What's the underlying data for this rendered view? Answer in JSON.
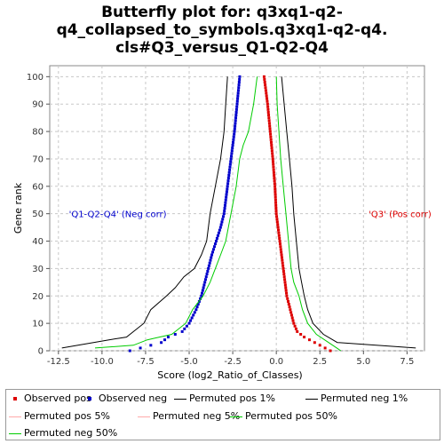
{
  "title_lines": [
    "Butterfly plot for: q3xq1-q2-",
    "q4_collapsed_to_symbols.q3xq1-q2-q4.",
    "cls#Q3_versus_Q1-Q2-Q4"
  ],
  "chart_data": {
    "type": "line",
    "xlabel": "Score (log2_Ratio_of_Classes)",
    "ylabel": "Gene rank",
    "xlim": [
      -13,
      8.5
    ],
    "ylim": [
      0,
      104
    ],
    "xticks": [
      -12.5,
      -10.0,
      -7.5,
      -5.0,
      -2.5,
      0.0,
      2.5,
      5.0,
      7.5
    ],
    "xtick_labels": [
      "-12.5",
      "-10.0",
      "-7.5",
      "-5.0",
      "-2.5",
      "0.0",
      "2.5",
      "5.0",
      "7.5"
    ],
    "yticks": [
      0,
      10,
      20,
      30,
      40,
      50,
      60,
      70,
      80,
      90,
      100
    ],
    "grid": true,
    "annotations": [
      {
        "text": "'Q1-Q2-Q4' (Neg corr)",
        "x": -11.9,
        "y": 50,
        "color": "#0000cc"
      },
      {
        "text": "'Q3' (Pos corr)",
        "x": 5.3,
        "y": 50,
        "color": "#dd0000"
      }
    ],
    "series": [
      {
        "name": "Observed pos",
        "style": "points",
        "color": "#dd0000",
        "x": [
          -0.7,
          -0.5,
          -0.35,
          -0.2,
          -0.08,
          0.0,
          0.1,
          0.2,
          0.3,
          0.4,
          0.5,
          0.6,
          0.8,
          1.0,
          1.2,
          1.6,
          2.2,
          3.1
        ],
        "y": [
          100,
          90,
          80,
          70,
          60,
          50,
          45,
          40,
          35,
          30,
          25,
          20,
          15,
          10,
          7,
          5,
          3,
          0
        ]
      },
      {
        "name": "Observed neg",
        "style": "points",
        "color": "#0000cc",
        "x": [
          -2.1,
          -2.25,
          -2.4,
          -2.6,
          -2.8,
          -3.0,
          -3.2,
          -3.45,
          -3.7,
          -3.9,
          -4.1,
          -4.3,
          -4.6,
          -5.0,
          -5.4,
          -6.2,
          -6.6,
          -7.2,
          -8.4
        ],
        "y": [
          100,
          90,
          80,
          70,
          60,
          50,
          45,
          40,
          35,
          30,
          25,
          20,
          15,
          10,
          7,
          5,
          3,
          2,
          0
        ]
      },
      {
        "name": "Permuted pos 1%",
        "style": "line",
        "color": "#000000",
        "x": [
          8.0,
          3.5,
          2.7,
          2.1,
          1.8,
          1.6,
          1.45,
          1.3,
          1.15,
          1.0,
          0.9,
          0.75,
          0.6,
          0.45,
          0.3
        ],
        "y": [
          1,
          3,
          6,
          10,
          15,
          20,
          25,
          30,
          40,
          50,
          60,
          70,
          80,
          90,
          100
        ]
      },
      {
        "name": "Permuted neg 1%",
        "style": "line",
        "color": "#000000",
        "x": [
          -12.3,
          -9.6,
          -8.6,
          -7.6,
          -7.2,
          -6.3,
          -5.8,
          -5.3,
          -4.7,
          -4.3,
          -4.0,
          -3.8,
          -3.5,
          -3.2,
          -3.0,
          -2.9,
          -2.8
        ],
        "y": [
          1,
          4,
          5,
          10,
          15,
          20,
          23,
          27,
          30,
          35,
          40,
          50,
          60,
          70,
          80,
          90,
          100
        ]
      },
      {
        "name": "Permuted pos 50%",
        "style": "line",
        "color": "#00cc00",
        "x": [
          3.7,
          3.0,
          2.3,
          1.8,
          1.5,
          1.3,
          1.0,
          0.85,
          0.7,
          0.55,
          0.4,
          0.25,
          0.15,
          0.05,
          0.0
        ],
        "y": [
          0,
          3,
          6,
          10,
          15,
          20,
          25,
          30,
          40,
          50,
          60,
          70,
          80,
          90,
          100
        ]
      },
      {
        "name": "Permuted neg 50%",
        "style": "line",
        "color": "#00cc00",
        "x": [
          -10.4,
          -8.2,
          -7.4,
          -6.0,
          -5.2,
          -4.8,
          -4.2,
          -3.8,
          -3.5,
          -3.2,
          -2.9,
          -2.6,
          -2.3,
          -2.1,
          -1.9,
          -1.6,
          -1.3,
          -1.1
        ],
        "y": [
          1,
          2,
          4,
          6,
          10,
          15,
          20,
          25,
          30,
          35,
          40,
          50,
          60,
          70,
          75,
          80,
          90,
          100
        ]
      }
    ]
  },
  "legend": [
    {
      "label": "Observed pos",
      "kind": "dot",
      "color": "#dd0000"
    },
    {
      "label": "Observed neg",
      "kind": "dot",
      "color": "#0000cc"
    },
    {
      "label": "Permuted pos 1%",
      "kind": "line",
      "color": "#000000"
    },
    {
      "label": "Permuted neg 1%",
      "kind": "line",
      "color": "#000000"
    },
    {
      "label": "Permuted pos 5%",
      "kind": "line",
      "color": "#ffaaaa"
    },
    {
      "label": "Permuted neg 5%",
      "kind": "line",
      "color": "#ffaaaa"
    },
    {
      "label": "Permuted pos 50%",
      "kind": "line",
      "color": "#00cc00"
    },
    {
      "label": "Permuted neg 50%",
      "kind": "line",
      "color": "#00cc00"
    }
  ]
}
